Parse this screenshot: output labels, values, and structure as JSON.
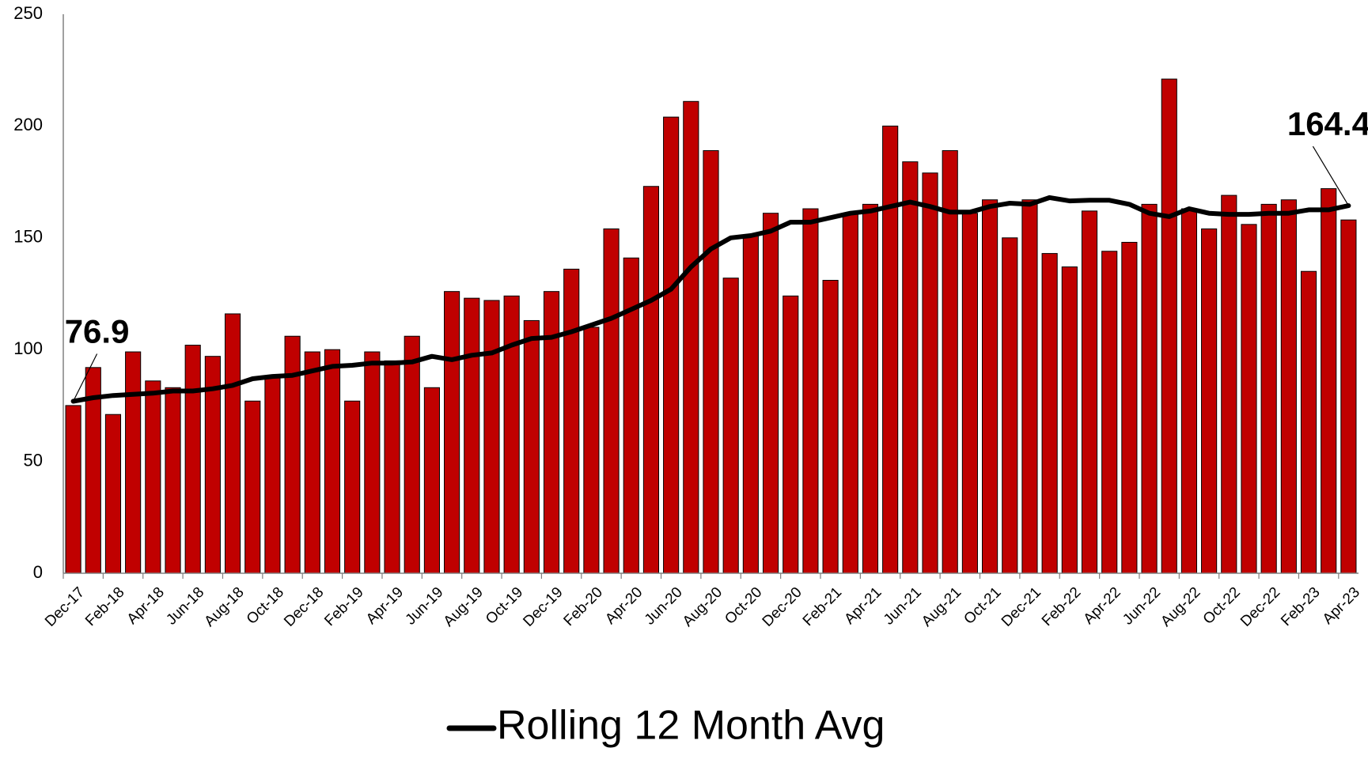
{
  "chart_data": {
    "type": "bar",
    "categories": [
      "Dec-17",
      null,
      "Feb-18",
      null,
      "Apr-18",
      null,
      "Jun-18",
      null,
      "Aug-18",
      null,
      "Oct-18",
      null,
      "Dec-18",
      null,
      "Feb-19",
      null,
      "Apr-19",
      null,
      "Jun-19",
      null,
      "Aug-19",
      null,
      "Oct-19",
      null,
      "Dec-19",
      null,
      "Feb-20",
      null,
      "Apr-20",
      null,
      "Jun-20",
      null,
      "Aug-20",
      null,
      "Oct-20",
      null,
      "Dec-20",
      null,
      "Feb-21",
      null,
      "Apr-21",
      null,
      "Jun-21",
      null,
      "Aug-21",
      null,
      "Oct-21",
      null,
      "Dec-21",
      null,
      "Feb-22",
      null,
      "Apr-22",
      null,
      "Jun-22",
      null,
      "Aug-22",
      null,
      "Oct-22",
      null,
      "Dec-22",
      null,
      "Feb-23",
      null,
      "Apr-23"
    ],
    "series": [
      {
        "type": "bar",
        "color": "#c00000",
        "values": [
          75,
          92,
          71,
          99,
          86,
          83,
          102,
          97,
          116,
          77,
          88,
          106,
          99,
          100,
          77,
          99,
          95,
          106,
          83,
          126,
          123,
          122,
          124,
          113,
          126,
          136,
          110,
          154,
          141,
          173,
          204,
          211,
          189,
          132,
          151,
          161,
          124,
          163,
          131,
          161,
          165,
          200,
          184,
          179,
          189,
          161,
          167,
          150,
          167,
          143,
          137,
          162,
          144,
          148,
          165,
          221,
          163,
          154,
          169,
          156,
          165,
          167,
          135,
          172,
          158
        ]
      },
      {
        "type": "line",
        "name": "Rolling 12 Month Avg",
        "color": "#000000",
        "values": [
          76.9,
          78.5,
          79.5,
          80,
          80.5,
          81.5,
          81.5,
          82.5,
          84,
          87,
          88,
          88.5,
          90.5,
          92.5,
          93,
          94,
          94,
          94.5,
          97,
          95.5,
          97.5,
          98.5,
          102,
          105,
          105.5,
          108,
          111,
          114,
          118,
          122,
          127,
          137,
          145,
          150,
          151,
          153,
          157,
          157,
          159,
          161,
          162,
          164,
          166,
          164,
          161.5,
          161.5,
          164,
          165.5,
          165,
          168,
          166.5,
          166.8,
          166.8,
          165,
          161,
          159.5,
          163,
          161,
          160.5,
          160.5,
          161,
          161,
          162.5,
          162.5,
          164.4
        ],
        "labeled_points": [
          0,
          64
        ]
      }
    ],
    "ylim": [
      0,
      250
    ],
    "yticks": [
      0,
      50,
      100,
      150,
      200,
      250
    ],
    "grid": false,
    "legend": "bottom"
  }
}
